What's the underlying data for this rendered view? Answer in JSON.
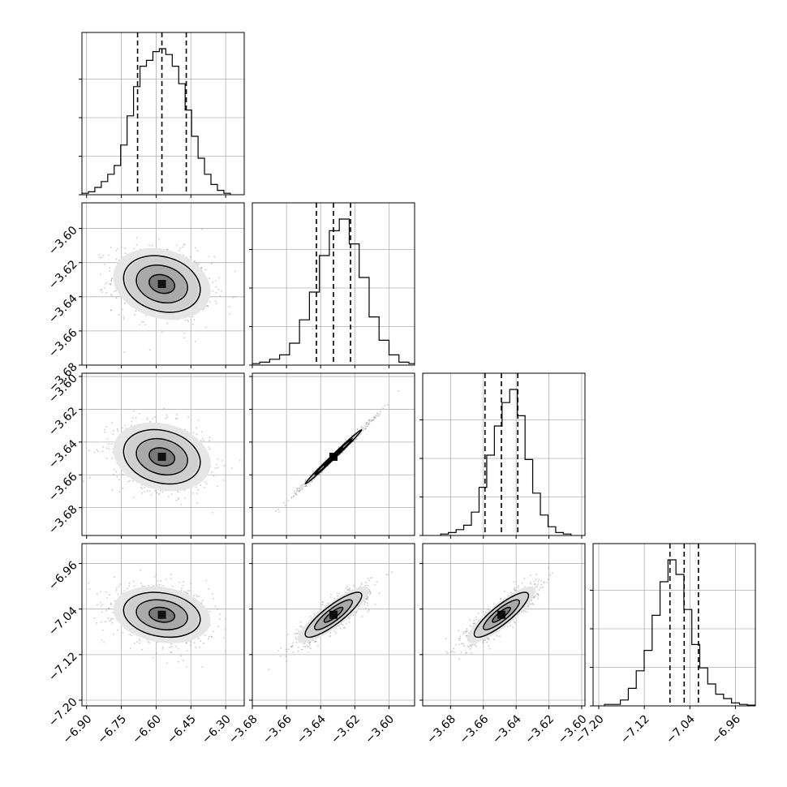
{
  "chart_data": {
    "type": "corner",
    "variables": [
      {
        "range": [
          -6.92,
          -6.22
        ],
        "ticks": [
          -6.9,
          -6.75,
          -6.6,
          -6.45,
          -6.3
        ],
        "tick_labels": [
          "−6.90",
          "−6.75",
          "−6.60",
          "−6.45",
          "−6.30"
        ],
        "quantiles": [
          -6.68,
          -6.575,
          -6.47
        ],
        "histogram_edges": [
          -6.92,
          -6.28
        ],
        "histogram_values": [
          0.01,
          0.02,
          0.05,
          0.09,
          0.14,
          0.2,
          0.34,
          0.54,
          0.74,
          0.88,
          0.92,
          0.98,
          1.0,
          0.96,
          0.88,
          0.76,
          0.58,
          0.4,
          0.25,
          0.14,
          0.07,
          0.03,
          0.01
        ]
      },
      {
        "range": [
          -3.68,
          -3.585
        ],
        "ticks": [
          -3.68,
          -3.66,
          -3.64,
          -3.62,
          -3.6
        ],
        "tick_labels": [
          "−3.68",
          "−3.66",
          "−3.64",
          "−3.62",
          "−3.60"
        ],
        "quantiles": [
          -3.6425,
          -3.6325,
          -3.6225
        ],
        "histogram_edges": [
          -3.6815,
          -3.5825
        ],
        "histogram_values": [
          0.01,
          0.02,
          0.04,
          0.07,
          0.15,
          0.31,
          0.5,
          0.75,
          0.92,
          1.0,
          0.83,
          0.6,
          0.33,
          0.17,
          0.07,
          0.02,
          0.01
        ]
      },
      {
        "range": [
          -3.697,
          -3.598
        ],
        "ticks": [
          -3.68,
          -3.66,
          -3.64,
          -3.62,
          -3.6
        ],
        "tick_labels": [
          "−3.68",
          "−3.66",
          "−3.64",
          "−3.62",
          "−3.60"
        ],
        "quantiles": [
          -3.659,
          -3.649,
          -3.639
        ],
        "histogram_edges": [
          -3.686,
          -3.6065
        ],
        "histogram_values": [
          0.01,
          0.02,
          0.04,
          0.07,
          0.16,
          0.33,
          0.55,
          0.75,
          0.91,
          1.0,
          0.82,
          0.52,
          0.29,
          0.14,
          0.06,
          0.02,
          0.01
        ]
      },
      {
        "range": [
          -7.21,
          -6.925
        ],
        "ticks": [
          -7.2,
          -7.12,
          -7.04,
          -6.96
        ],
        "tick_labels": [
          "−7.20",
          "−7.12",
          "−7.04",
          "−6.96"
        ],
        "quantiles": [
          -7.075,
          -7.05,
          -7.025
        ],
        "histogram_edges": [
          -7.19,
          -6.925
        ],
        "histogram_values": [
          0.01,
          0.01,
          0.04,
          0.12,
          0.24,
          0.38,
          0.62,
          0.85,
          1.0,
          0.9,
          0.66,
          0.42,
          0.26,
          0.15,
          0.08,
          0.05,
          0.02,
          0.01,
          0.005
        ]
      }
    ],
    "pairs": [
      {
        "row": 1,
        "col": 0,
        "center": [
          -6.575,
          -3.6325
        ],
        "spread": [
          0.105,
          0.0105
        ],
        "rho": -0.2
      },
      {
        "row": 2,
        "col": 0,
        "center": [
          -6.575,
          -3.649
        ],
        "spread": [
          0.105,
          0.0105
        ],
        "rho": -0.2
      },
      {
        "row": 2,
        "col": 1,
        "center": [
          -3.6325,
          -3.649
        ],
        "spread": [
          0.0105,
          0.0105
        ],
        "rho": 0.995
      },
      {
        "row": 3,
        "col": 0,
        "center": [
          -6.575,
          -7.05
        ],
        "spread": [
          0.105,
          0.025
        ],
        "rho": -0.2
      },
      {
        "row": 3,
        "col": 1,
        "center": [
          -3.6325,
          -7.05
        ],
        "spread": [
          0.0105,
          0.025
        ],
        "rho": 0.86
      },
      {
        "row": 3,
        "col": 2,
        "center": [
          -3.649,
          -7.05
        ],
        "spread": [
          0.0105,
          0.025
        ],
        "rho": 0.86
      }
    ],
    "sigma_levels": [
      0.5,
      1.0,
      1.5,
      2.0
    ],
    "grid": true,
    "colors": {
      "line": "#000000",
      "points": "#888888",
      "grid": "#b0b0b0",
      "axes": "#000000"
    }
  }
}
